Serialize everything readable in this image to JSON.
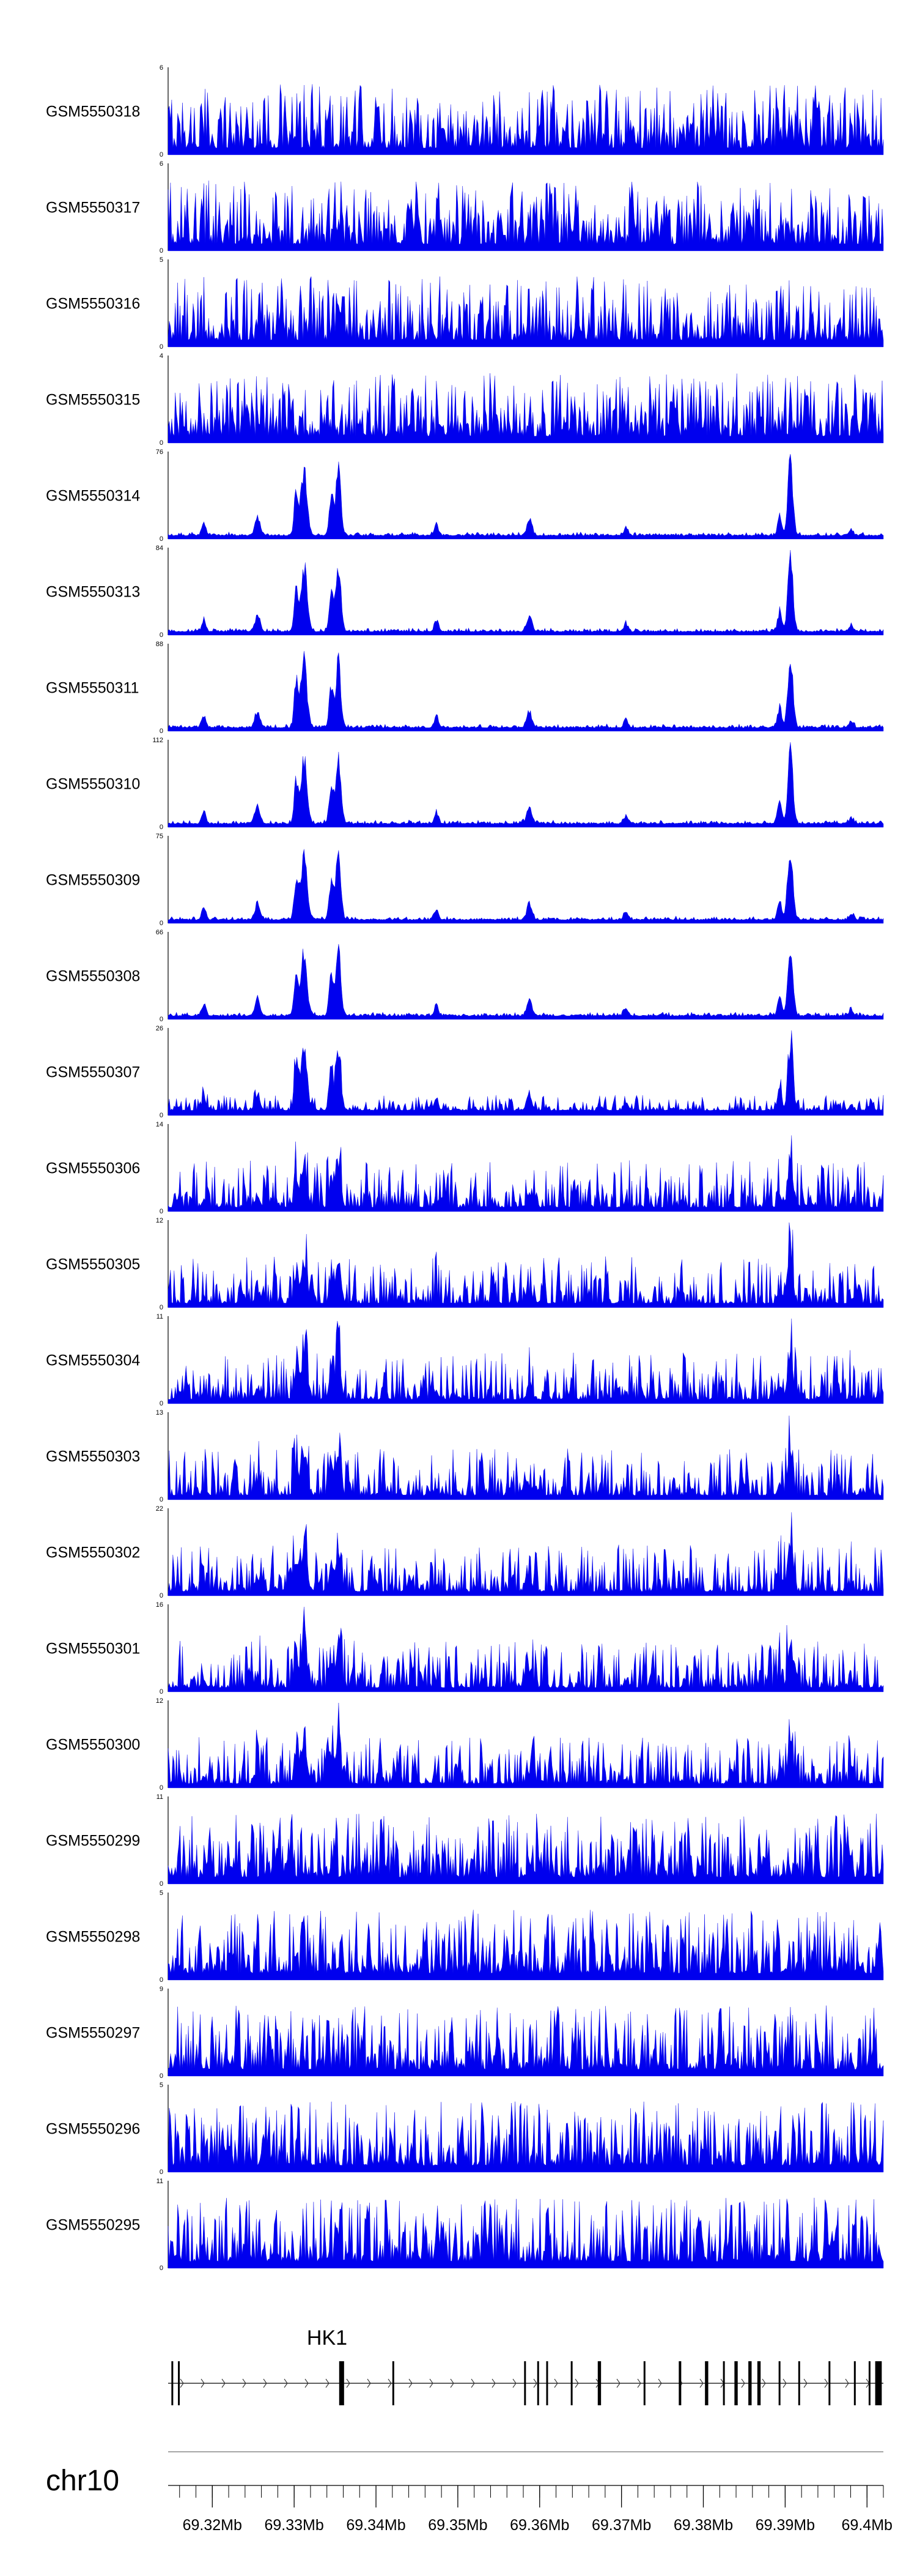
{
  "chart_data": {
    "type": "area",
    "title": "",
    "xlabel": "",
    "ylabel": "",
    "chromosome": "chr10",
    "color": "#0000ee",
    "xlim_mb": [
      69.3146,
      69.402
    ],
    "x_ticks": [
      {
        "value": 69.32,
        "label": "69.32Mb"
      },
      {
        "value": 69.33,
        "label": "69.33Mb"
      },
      {
        "value": 69.34,
        "label": "69.34Mb"
      },
      {
        "value": 69.35,
        "label": "69.35Mb"
      },
      {
        "value": 69.36,
        "label": "69.36Mb"
      },
      {
        "value": 69.37,
        "label": "69.37Mb"
      },
      {
        "value": 69.38,
        "label": "69.38Mb"
      },
      {
        "value": 69.39,
        "label": "69.39Mb"
      },
      {
        "value": 69.4,
        "label": "69.4Mb"
      }
    ],
    "series": [
      {
        "name": "GSM5550318",
        "ymin": "0",
        "ymax": "6",
        "max": 6,
        "profile": "noise"
      },
      {
        "name": "GSM5550317",
        "ymin": "0",
        "ymax": "6",
        "max": 6,
        "profile": "noise"
      },
      {
        "name": "GSM5550316",
        "ymin": "0",
        "ymax": "5",
        "max": 5,
        "profile": "noise"
      },
      {
        "name": "GSM5550315",
        "ymin": "0",
        "ymax": "4",
        "max": 4,
        "profile": "noise"
      },
      {
        "name": "GSM5550314",
        "ymin": "0",
        "ymax": "76",
        "max": 76,
        "profile": "peaks"
      },
      {
        "name": "GSM5550313",
        "ymin": "0",
        "ymax": "84",
        "max": 84,
        "profile": "peaks"
      },
      {
        "name": "GSM5550311",
        "ymin": "0",
        "ymax": "88",
        "max": 88,
        "profile": "peaks"
      },
      {
        "name": "GSM5550310",
        "ymin": "0",
        "ymax": "112",
        "max": 112,
        "profile": "peaks"
      },
      {
        "name": "GSM5550309",
        "ymin": "0",
        "ymax": "75",
        "max": 75,
        "profile": "peaks"
      },
      {
        "name": "GSM5550308",
        "ymin": "0",
        "ymax": "66",
        "max": 66,
        "profile": "peaks"
      },
      {
        "name": "GSM5550307",
        "ymin": "0",
        "ymax": "26",
        "max": 26,
        "profile": "peaks-medium"
      },
      {
        "name": "GSM5550306",
        "ymin": "0",
        "ymax": "14",
        "max": 14,
        "profile": "mixed"
      },
      {
        "name": "GSM5550305",
        "ymin": "0",
        "ymax": "12",
        "max": 12,
        "profile": "mixed"
      },
      {
        "name": "GSM5550304",
        "ymin": "0",
        "ymax": "11",
        "max": 11,
        "profile": "mixed"
      },
      {
        "name": "GSM5550303",
        "ymin": "0",
        "ymax": "13",
        "max": 13,
        "profile": "mixed"
      },
      {
        "name": "GSM5550302",
        "ymin": "0",
        "ymax": "22",
        "max": 22,
        "profile": "mixed"
      },
      {
        "name": "GSM5550301",
        "ymin": "0",
        "ymax": "16",
        "max": 16,
        "profile": "mixed"
      },
      {
        "name": "GSM5550300",
        "ymin": "0",
        "ymax": "12",
        "max": 12,
        "profile": "mixed"
      },
      {
        "name": "GSM5550299",
        "ymin": "0",
        "ymax": "11",
        "max": 11,
        "profile": "noise"
      },
      {
        "name": "GSM5550298",
        "ymin": "0",
        "ymax": "5",
        "max": 5,
        "profile": "noise"
      },
      {
        "name": "GSM5550297",
        "ymin": "0",
        "ymax": "9",
        "max": 9,
        "profile": "noise"
      },
      {
        "name": "GSM5550296",
        "ymin": "0",
        "ymax": "5",
        "max": 5,
        "profile": "noise"
      },
      {
        "name": "GSM5550295",
        "ymin": "0",
        "ymax": "11",
        "max": 11,
        "profile": "noise"
      }
    ],
    "gene": {
      "name": "HK1",
      "strand": "+",
      "start_mb": 69.3146,
      "end_mb": 69.402,
      "exons_mb": [
        [
          69.315,
          69.3151
        ],
        [
          69.3158,
          69.316
        ],
        [
          69.3355,
          69.3361
        ],
        [
          69.342,
          69.3422
        ],
        [
          69.3581,
          69.3583
        ],
        [
          69.3597,
          69.3599
        ],
        [
          69.3608,
          69.3609
        ],
        [
          69.3638,
          69.364
        ],
        [
          69.3671,
          69.3675
        ],
        [
          69.3727,
          69.3729
        ],
        [
          69.377,
          69.3773
        ],
        [
          69.3802,
          69.3806
        ],
        [
          69.3824,
          69.3826
        ],
        [
          69.3838,
          69.3842
        ],
        [
          69.3855,
          69.3859
        ],
        [
          69.3866,
          69.387
        ],
        [
          69.3892,
          69.3894
        ],
        [
          69.3916,
          69.3918
        ],
        [
          69.3953,
          69.3955
        ],
        [
          69.3984,
          69.3986
        ],
        [
          69.4002,
          69.4004
        ],
        [
          69.401,
          69.4018
        ]
      ]
    }
  }
}
